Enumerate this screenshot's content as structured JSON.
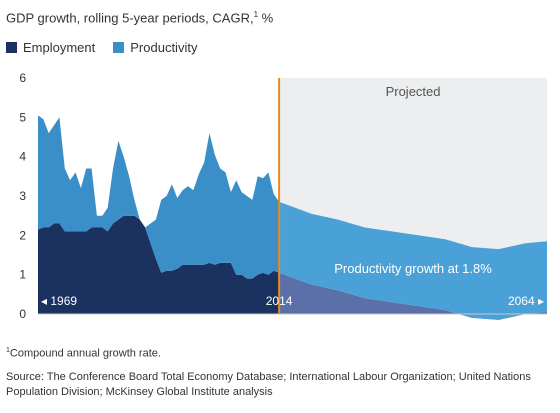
{
  "header": {
    "title": "GDP growth, rolling 5-year periods, CAGR,",
    "title_sup": "1",
    "title_unit": " %"
  },
  "legend": [
    {
      "label": "Employment",
      "color": "#1b3160"
    },
    {
      "label": "Productivity",
      "color": "#3a8fc8"
    }
  ],
  "colors": {
    "employment": "#1b3160",
    "productivity": "#3a8fc8",
    "employment_projected": "#5b6fa8",
    "productivity_projected": "#4aa1d8",
    "projected_bg": "#eceeef",
    "divider": "#e8891e"
  },
  "chart_data": {
    "type": "area",
    "stacked": true,
    "ylim": [
      0,
      6
    ],
    "xlim": [
      1969,
      2064
    ],
    "yticks": [
      "0",
      "1",
      "2",
      "3",
      "4",
      "5",
      "6"
    ],
    "x_labels": {
      "start": "1969",
      "split": "2014",
      "end": "2064"
    },
    "projected_label": "Projected",
    "annotation": "Productivity growth at 1.8%",
    "split_year": 2014,
    "series": [
      {
        "name": "Employment",
        "x": [
          1969,
          1970,
          1971,
          1972,
          1973,
          1974,
          1975,
          1976,
          1977,
          1978,
          1979,
          1980,
          1981,
          1982,
          1983,
          1984,
          1985,
          1986,
          1987,
          1988,
          1989,
          1990,
          1991,
          1992,
          1993,
          1994,
          1995,
          1996,
          1997,
          1998,
          1999,
          2000,
          2001,
          2002,
          2003,
          2004,
          2005,
          2006,
          2007,
          2008,
          2009,
          2010,
          2011,
          2012,
          2013,
          2014,
          2017,
          2020,
          2025,
          2030,
          2035,
          2040,
          2045,
          2050,
          2055,
          2060,
          2064
        ],
        "values": [
          2.15,
          2.2,
          2.2,
          2.3,
          2.3,
          2.1,
          2.1,
          2.1,
          2.1,
          2.1,
          2.2,
          2.2,
          2.2,
          2.1,
          2.3,
          2.4,
          2.5,
          2.5,
          2.5,
          2.4,
          2.2,
          1.8,
          1.4,
          1.05,
          1.1,
          1.1,
          1.15,
          1.25,
          1.25,
          1.25,
          1.25,
          1.25,
          1.3,
          1.25,
          1.3,
          1.3,
          1.3,
          1.0,
          1.0,
          0.9,
          0.9,
          1.0,
          1.05,
          1.0,
          1.1,
          1.05,
          0.9,
          0.75,
          0.6,
          0.4,
          0.3,
          0.2,
          0.1,
          -0.1,
          -0.15,
          0.0,
          0.05
        ]
      },
      {
        "name": "Productivity",
        "x": [
          1969,
          1970,
          1971,
          1972,
          1973,
          1974,
          1975,
          1976,
          1977,
          1978,
          1979,
          1980,
          1981,
          1982,
          1983,
          1984,
          1985,
          1986,
          1987,
          1988,
          1989,
          1990,
          1991,
          1992,
          1993,
          1994,
          1995,
          1996,
          1997,
          1998,
          1999,
          2000,
          2001,
          2002,
          2003,
          2004,
          2005,
          2006,
          2007,
          2008,
          2009,
          2010,
          2011,
          2012,
          2013,
          2014,
          2017,
          2020,
          2025,
          2030,
          2035,
          2040,
          2045,
          2050,
          2055,
          2060,
          2064
        ],
        "values": [
          2.9,
          2.75,
          2.4,
          2.5,
          2.7,
          1.6,
          1.3,
          1.5,
          1.1,
          1.6,
          1.5,
          0.3,
          0.3,
          0.6,
          1.4,
          2.0,
          1.5,
          1.0,
          0.4,
          0.0,
          0.0,
          0.5,
          1.0,
          1.85,
          1.9,
          2.2,
          1.8,
          1.9,
          2.0,
          1.9,
          2.3,
          2.6,
          3.3,
          2.8,
          2.4,
          2.3,
          1.8,
          2.4,
          2.1,
          2.1,
          2.0,
          2.5,
          2.4,
          2.6,
          1.95,
          1.8,
          1.8,
          1.8,
          1.8,
          1.8,
          1.8,
          1.8,
          1.8,
          1.8,
          1.8,
          1.8,
          1.8
        ]
      }
    ]
  },
  "footnote": {
    "sup": "1",
    "text": "Compound annual growth rate."
  },
  "source": "Source: The Conference Board Total Economy Database; International Labour Organization; United Nations Population Division; McKinsey Global Institute analysis"
}
